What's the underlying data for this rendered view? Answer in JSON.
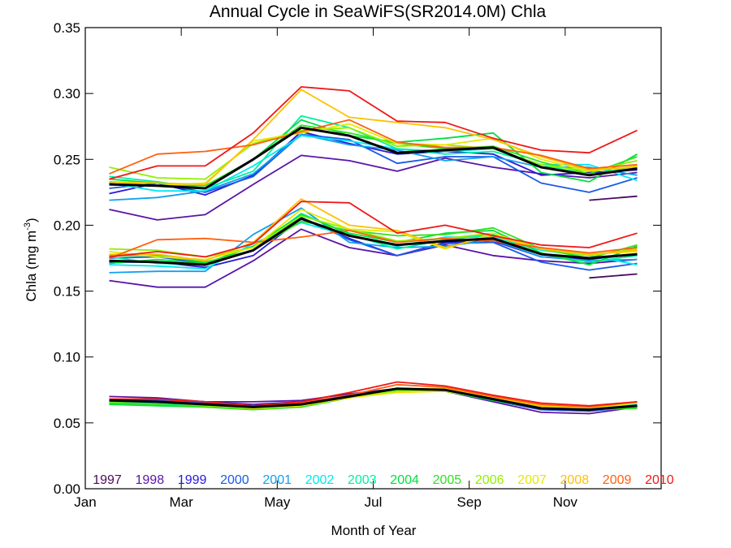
{
  "chart_data": {
    "type": "line",
    "title": "Annual Cycle in SeaWiFS(SR2014.0M) Chla",
    "xlabel": "Month of Year",
    "ylabel_main": "Chla (mg m",
    "ylabel_sup": "-3",
    "ylabel_close": ")",
    "xlim": [
      1,
      13
    ],
    "ylim": [
      0,
      0.35
    ],
    "x_ticks": [
      {
        "value": 1,
        "label": "Jan"
      },
      {
        "value": 3,
        "label": "Mar"
      },
      {
        "value": 5,
        "label": "May"
      },
      {
        "value": 7,
        "label": "Jul"
      },
      {
        "value": 9,
        "label": "Sep"
      },
      {
        "value": 11,
        "label": "Nov"
      }
    ],
    "y_ticks": [
      {
        "value": 0.0,
        "label": "0.00"
      },
      {
        "value": 0.05,
        "label": "0.05"
      },
      {
        "value": 0.1,
        "label": "0.10"
      },
      {
        "value": 0.15,
        "label": "0.15"
      },
      {
        "value": 0.2,
        "label": "0.20"
      },
      {
        "value": 0.25,
        "label": "0.25"
      },
      {
        "value": 0.3,
        "label": "0.30"
      },
      {
        "value": 0.35,
        "label": "0.35"
      }
    ],
    "months": [
      1.5,
      2.5,
      3.5,
      4.5,
      5.5,
      6.5,
      7.5,
      8.5,
      9.5,
      10.5,
      11.5,
      12.5
    ],
    "groups": [
      "upper",
      "middle",
      "lower"
    ],
    "series": [
      {
        "name": "1997",
        "color": "#4b0a5a",
        "upper": [
          null,
          null,
          null,
          null,
          null,
          null,
          null,
          null,
          null,
          null,
          0.219,
          0.222
        ],
        "middle": [
          null,
          null,
          null,
          null,
          null,
          null,
          null,
          null,
          null,
          null,
          0.16,
          0.163
        ],
        "lower": [
          null,
          null,
          null,
          null,
          null,
          null,
          null,
          null,
          null,
          null,
          0.062,
          0.063
        ]
      },
      {
        "name": "1998",
        "color": "#5a14a8",
        "upper": [
          0.212,
          0.204,
          0.208,
          0.231,
          0.253,
          0.249,
          0.241,
          0.251,
          0.244,
          0.239,
          0.236,
          0.24
        ],
        "middle": [
          0.158,
          0.153,
          0.153,
          0.173,
          0.197,
          0.183,
          0.177,
          0.185,
          0.177,
          0.173,
          0.171,
          0.174
        ],
        "lower": [
          0.07,
          0.069,
          0.066,
          0.066,
          0.067,
          0.072,
          0.076,
          0.074,
          0.066,
          0.058,
          0.057,
          0.062
        ]
      },
      {
        "name": "1999",
        "color": "#2a18d8",
        "upper": [
          0.224,
          0.232,
          0.223,
          0.238,
          0.271,
          0.262,
          0.254,
          0.256,
          0.254,
          0.238,
          0.24,
          0.242
        ],
        "middle": [
          0.172,
          0.172,
          0.168,
          0.177,
          0.205,
          0.19,
          0.177,
          0.187,
          0.188,
          0.176,
          0.174,
          0.178
        ],
        "lower": [
          0.068,
          0.068,
          0.066,
          0.064,
          0.066,
          0.07,
          0.076,
          0.075,
          0.067,
          0.06,
          0.059,
          0.063
        ]
      },
      {
        "name": "2000",
        "color": "#1a5ae8",
        "upper": [
          0.228,
          0.232,
          0.225,
          0.237,
          0.269,
          0.265,
          0.247,
          0.252,
          0.252,
          0.232,
          0.225,
          0.236
        ],
        "middle": [
          0.175,
          0.176,
          0.171,
          0.184,
          0.206,
          0.189,
          0.177,
          0.186,
          0.187,
          0.172,
          0.166,
          0.171
        ],
        "lower": [
          0.067,
          0.067,
          0.065,
          0.063,
          0.065,
          0.07,
          0.076,
          0.074,
          0.067,
          0.06,
          0.059,
          0.062
        ]
      },
      {
        "name": "2001",
        "color": "#10a0f0",
        "upper": [
          0.219,
          0.221,
          0.226,
          0.239,
          0.269,
          0.261,
          0.257,
          0.249,
          0.252,
          0.244,
          0.244,
          0.238
        ],
        "middle": [
          0.164,
          0.165,
          0.165,
          0.193,
          0.213,
          0.187,
          0.183,
          0.184,
          0.189,
          0.176,
          0.173,
          0.174
        ],
        "lower": [
          0.066,
          0.066,
          0.064,
          0.062,
          0.064,
          0.07,
          0.076,
          0.075,
          0.068,
          0.061,
          0.06,
          0.063
        ]
      },
      {
        "name": "2002",
        "color": "#00e8f0",
        "upper": [
          0.232,
          0.226,
          0.226,
          0.245,
          0.268,
          0.264,
          0.258,
          0.256,
          0.258,
          0.246,
          0.246,
          0.234
        ],
        "middle": [
          0.17,
          0.169,
          0.167,
          0.186,
          0.202,
          0.192,
          0.184,
          0.191,
          0.191,
          0.181,
          0.177,
          0.17
        ],
        "lower": [
          0.067,
          0.066,
          0.064,
          0.063,
          0.064,
          0.07,
          0.075,
          0.075,
          0.068,
          0.061,
          0.061,
          0.064
        ]
      },
      {
        "name": "2003",
        "color": "#00f0a0",
        "upper": [
          0.237,
          0.233,
          0.228,
          0.241,
          0.283,
          0.274,
          0.258,
          0.254,
          0.256,
          0.246,
          0.238,
          0.245
        ],
        "middle": [
          0.176,
          0.171,
          0.17,
          0.181,
          0.209,
          0.193,
          0.182,
          0.189,
          0.193,
          0.178,
          0.172,
          0.177
        ],
        "lower": [
          0.065,
          0.065,
          0.063,
          0.062,
          0.063,
          0.069,
          0.075,
          0.075,
          0.068,
          0.061,
          0.06,
          0.063
        ]
      },
      {
        "name": "2004",
        "color": "#00e040",
        "upper": [
          0.235,
          0.232,
          0.228,
          0.25,
          0.28,
          0.268,
          0.263,
          0.266,
          0.27,
          0.24,
          0.233,
          0.254
        ],
        "middle": [
          0.171,
          0.174,
          0.171,
          0.184,
          0.208,
          0.194,
          0.187,
          0.194,
          0.196,
          0.179,
          0.17,
          0.184
        ],
        "lower": [
          0.064,
          0.063,
          0.062,
          0.061,
          0.062,
          0.069,
          0.075,
          0.074,
          0.067,
          0.061,
          0.06,
          0.062
        ]
      },
      {
        "name": "2005",
        "color": "#30e020",
        "upper": [
          0.233,
          0.23,
          0.23,
          0.25,
          0.276,
          0.27,
          0.262,
          0.258,
          0.26,
          0.248,
          0.239,
          0.252
        ],
        "middle": [
          0.177,
          0.177,
          0.172,
          0.181,
          0.203,
          0.196,
          0.192,
          0.193,
          0.198,
          0.182,
          0.175,
          0.185
        ],
        "lower": [
          0.065,
          0.064,
          0.062,
          0.06,
          0.062,
          0.069,
          0.075,
          0.075,
          0.068,
          0.061,
          0.06,
          0.061
        ]
      },
      {
        "name": "2006",
        "color": "#90f000",
        "upper": [
          0.244,
          0.236,
          0.235,
          0.262,
          0.272,
          0.274,
          0.26,
          0.261,
          0.258,
          0.246,
          0.241,
          0.249
        ],
        "middle": [
          0.182,
          0.181,
          0.176,
          0.183,
          0.207,
          0.197,
          0.188,
          0.19,
          0.194,
          0.182,
          0.177,
          0.182
        ],
        "lower": [
          0.066,
          0.066,
          0.063,
          0.061,
          0.063,
          0.07,
          0.074,
          0.075,
          0.068,
          0.061,
          0.061,
          0.063
        ]
      },
      {
        "name": "2007",
        "color": "#e8e800",
        "upper": [
          0.233,
          0.23,
          0.232,
          0.264,
          0.27,
          0.277,
          0.262,
          0.261,
          0.266,
          0.25,
          0.241,
          0.245
        ],
        "middle": [
          0.18,
          0.176,
          0.174,
          0.183,
          0.212,
          0.197,
          0.195,
          0.182,
          0.194,
          0.182,
          0.178,
          0.18
        ],
        "lower": [
          0.067,
          0.066,
          0.064,
          0.061,
          0.063,
          0.069,
          0.073,
          0.074,
          0.068,
          0.062,
          0.061,
          0.065
        ]
      },
      {
        "name": "2008",
        "color": "#ffc000",
        "upper": [
          0.233,
          0.232,
          0.231,
          0.265,
          0.303,
          0.282,
          0.278,
          0.274,
          0.265,
          0.252,
          0.242,
          0.244
        ],
        "middle": [
          0.178,
          0.178,
          0.173,
          0.187,
          0.22,
          0.2,
          0.196,
          0.183,
          0.192,
          0.182,
          0.178,
          0.181
        ],
        "lower": [
          0.067,
          0.066,
          0.064,
          0.062,
          0.064,
          0.07,
          0.076,
          0.076,
          0.069,
          0.063,
          0.062,
          0.066
        ]
      },
      {
        "name": "2009",
        "color": "#ff6010",
        "upper": [
          0.239,
          0.254,
          0.256,
          0.261,
          0.271,
          0.28,
          0.263,
          0.259,
          0.259,
          0.253,
          0.243,
          0.246
        ],
        "middle": [
          0.175,
          0.189,
          0.19,
          0.187,
          0.191,
          0.196,
          0.187,
          0.19,
          0.188,
          0.183,
          0.179,
          0.183
        ],
        "lower": [
          0.068,
          0.068,
          0.066,
          0.063,
          0.065,
          0.071,
          0.079,
          0.077,
          0.07,
          0.064,
          0.062,
          0.066
        ]
      },
      {
        "name": "2010",
        "color": "#f01818",
        "upper": [
          0.235,
          0.245,
          0.245,
          0.27,
          0.305,
          0.302,
          0.279,
          0.278,
          0.266,
          0.257,
          0.255,
          0.272
        ],
        "middle": [
          0.176,
          0.18,
          0.176,
          0.186,
          0.218,
          0.217,
          0.194,
          0.2,
          0.192,
          0.185,
          0.183,
          0.194
        ],
        "lower": [
          0.068,
          0.068,
          0.066,
          0.063,
          0.066,
          0.073,
          0.081,
          0.078,
          0.071,
          0.065,
          0.063,
          0.066
        ]
      },
      {
        "name": "",
        "color": "#000000",
        "upper": [
          0.231,
          0.23,
          0.228,
          0.25,
          0.274,
          0.268,
          0.255,
          0.257,
          0.259,
          0.244,
          0.238,
          0.243
        ],
        "middle": [
          0.173,
          0.172,
          0.17,
          0.181,
          0.205,
          0.192,
          0.185,
          0.188,
          0.19,
          0.178,
          0.175,
          0.178
        ],
        "lower": [
          0.067,
          0.066,
          0.064,
          0.062,
          0.064,
          0.07,
          0.076,
          0.075,
          0.068,
          0.061,
          0.06,
          0.063
        ]
      }
    ]
  }
}
